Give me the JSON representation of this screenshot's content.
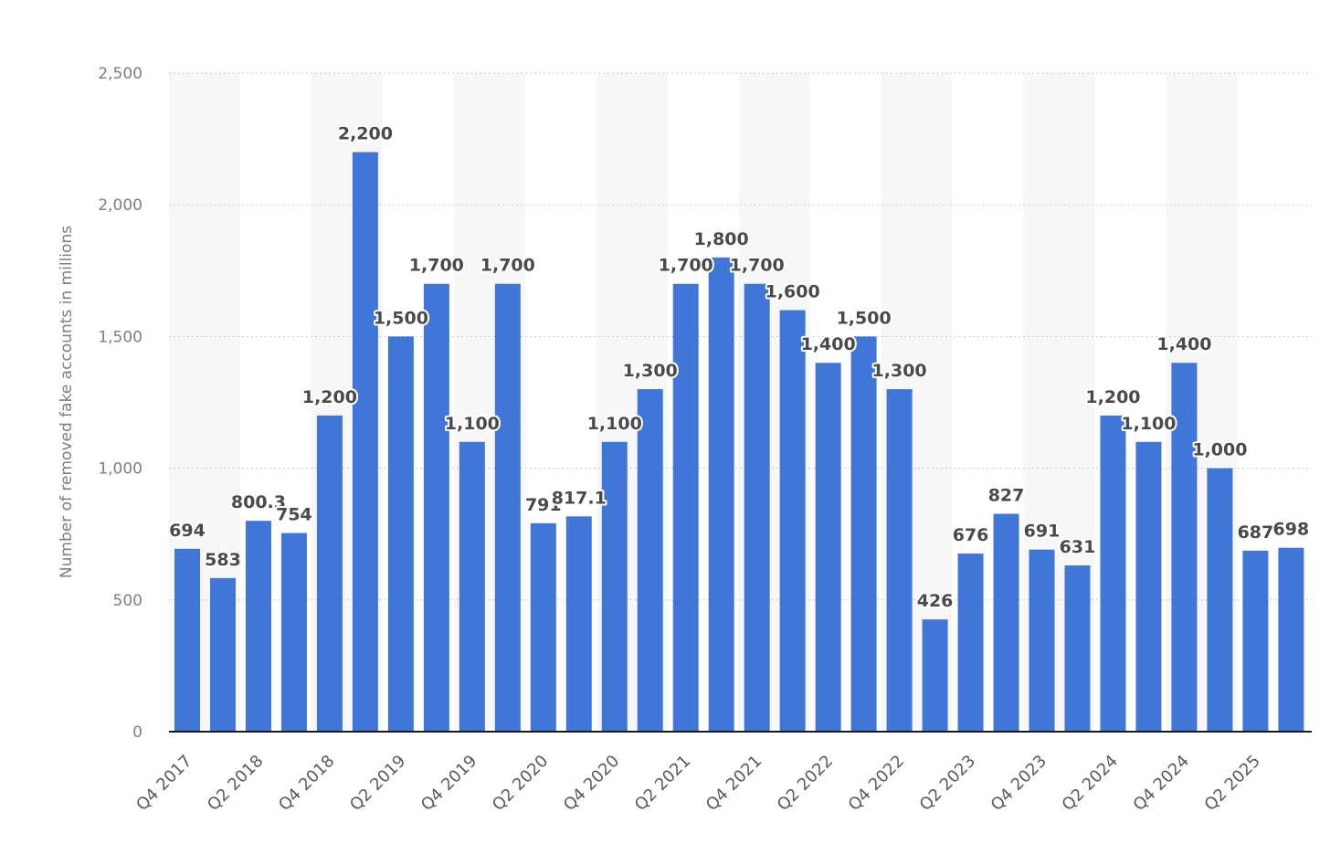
{
  "chart_data": {
    "type": "bar",
    "ylabel": "Number of removed fake accounts in millions",
    "xlabel": "",
    "ylim": [
      0,
      2500
    ],
    "yticks": [
      0,
      500,
      1000,
      1500,
      2000,
      2500
    ],
    "ytick_labels": [
      "0",
      "500",
      "1,000",
      "1,500",
      "2,000",
      "2,500"
    ],
    "grid": "horizontal-dotted",
    "bar_color": "#3f76d8",
    "band_color": "#f7f7f7",
    "categories": [
      "Q4 2017",
      "Q1 2018",
      "Q2 2018",
      "Q3 2018",
      "Q4 2018",
      "Q1 2019",
      "Q2 2019",
      "Q3 2019",
      "Q4 2019",
      "Q1 2020",
      "Q2 2020",
      "Q3 2020",
      "Q4 2020",
      "Q1 2021",
      "Q2 2021",
      "Q3 2021",
      "Q4 2021",
      "Q1 2022",
      "Q2 2022",
      "Q3 2022",
      "Q4 2022",
      "Q1 2023",
      "Q2 2023",
      "Q3 2023",
      "Q4 2023",
      "Q1 2024",
      "Q2 2024",
      "Q3 2024",
      "Q4 2024",
      "Q1 2025",
      "Q2 2025",
      "Q3 2025"
    ],
    "shown_tick_labels": [
      "Q4 2017",
      "",
      "Q2 2018",
      "",
      "Q4 2018",
      "",
      "Q2 2019",
      "",
      "Q4 2019",
      "",
      "Q2 2020",
      "",
      "Q4 2020",
      "",
      "Q2 2021",
      "",
      "Q4 2021",
      "",
      "Q2 2022",
      "",
      "Q4 2022",
      "",
      "Q2 2023",
      "",
      "Q4 2023",
      "",
      "Q2 2024",
      "",
      "Q4 2024",
      "",
      "Q2 2025",
      ""
    ],
    "values": [
      694,
      583,
      800.3,
      754,
      1200,
      2200,
      1500,
      1700,
      1100,
      1700,
      791,
      817.1,
      1100,
      1300,
      1700,
      1800,
      1700,
      1600,
      1400,
      1500,
      1300,
      426,
      676,
      827,
      691,
      631,
      1200,
      1100,
      1400,
      1000,
      687,
      698
    ],
    "data_labels": [
      "694",
      "583",
      "800.3",
      "754",
      "1,200",
      "2,200",
      "1,500",
      "1,700",
      "1,100",
      "1,700",
      "791",
      "817.1",
      "1,100",
      "1,300",
      "1,700",
      "1,800",
      "1,700",
      "1,600",
      "1,400",
      "1,500",
      "1,300",
      "426",
      "676",
      "827",
      "691",
      "631",
      "1,200",
      "1,100",
      "1,400",
      "1,000",
      "687",
      "698"
    ]
  }
}
